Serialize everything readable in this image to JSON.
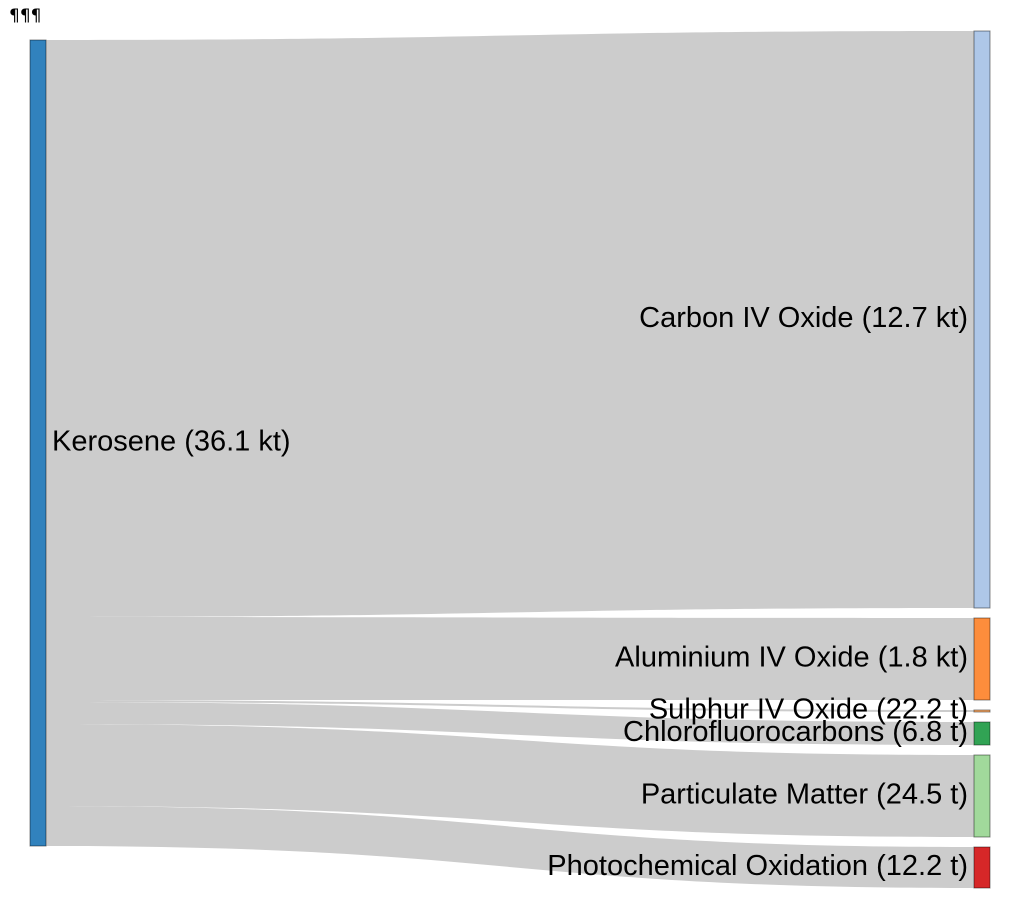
{
  "corner_mark": "¶¶¶",
  "chart_data": {
    "type": "sankey",
    "sources": [
      {
        "id": "kerosene",
        "label": "Kerosene (36.1 kt)",
        "color": "#3182bd"
      }
    ],
    "targets": [
      {
        "id": "co2",
        "label": "Carbon IV Oxide (12.7 kt)",
        "color": "#aec7e8"
      },
      {
        "id": "al",
        "label": "Aluminium IV Oxide (1.8 kt)",
        "color": "#fd8d3c"
      },
      {
        "id": "so2",
        "label": "Sulphur IV Oxide (22.2 t)",
        "color": "#fdae6b"
      },
      {
        "id": "cfc",
        "label": "Chlorofluorocarbons (6.8 t)",
        "color": "#31a354"
      },
      {
        "id": "pm",
        "label": "Particulate Matter (24.5 t)",
        "color": "#a1d99b"
      },
      {
        "id": "pco",
        "label": "Photochemical Oxidation (12.2 t)",
        "color": "#d62728"
      }
    ],
    "link_color": "#cccccc"
  }
}
